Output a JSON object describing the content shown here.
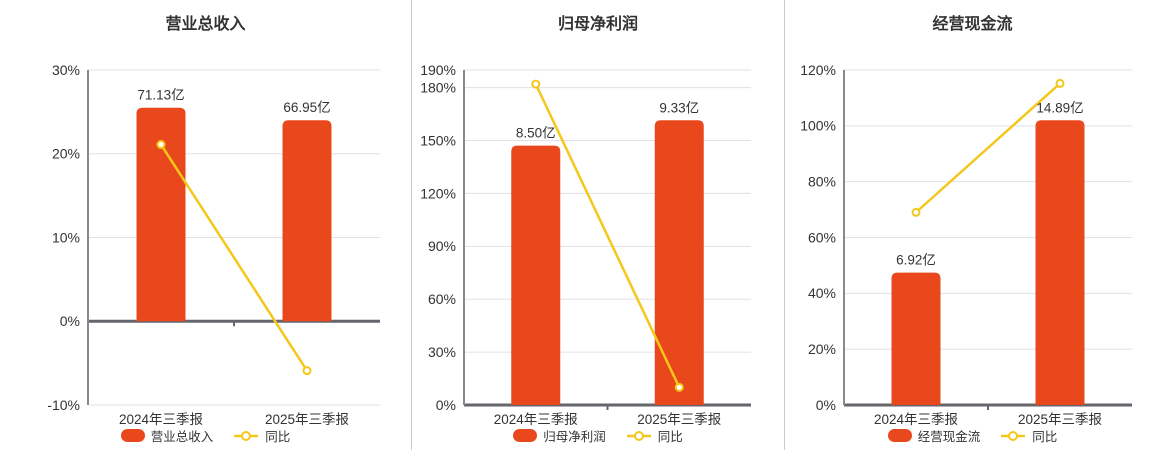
{
  "colors": {
    "bar": "#e8481b",
    "line": "#f4c71a",
    "grid": "#e0e0e8",
    "axis": "#88888f",
    "baseline": "#65656d",
    "divider": "#cccccc",
    "text": "#333333"
  },
  "chart_data": [
    {
      "type": "bar+line",
      "title": "营业总收入",
      "categories": [
        "2024年三季报",
        "2025年三季报"
      ],
      "series": [
        {
          "name": "营业总收入",
          "kind": "bar",
          "unit": "亿",
          "values": [
            71.13,
            66.95
          ],
          "labels": [
            "71.13亿",
            "66.95亿"
          ]
        },
        {
          "name": "同比",
          "kind": "line",
          "unit": "%",
          "values": [
            21.1,
            -5.9
          ]
        }
      ],
      "y_axis": {
        "min": -10,
        "max": 30,
        "ticks": [
          30,
          20,
          10,
          0,
          -10
        ],
        "tick_labels": [
          "30%",
          "20%",
          "10%",
          "0%",
          "-10%"
        ]
      },
      "grid": true,
      "legend_position": "bottom"
    },
    {
      "type": "bar+line",
      "title": "归母净利润",
      "categories": [
        "2024年三季报",
        "2025年三季报"
      ],
      "series": [
        {
          "name": "归母净利润",
          "kind": "bar",
          "unit": "亿",
          "values": [
            8.5,
            9.33
          ],
          "labels": [
            "8.50亿",
            "9.33亿"
          ]
        },
        {
          "name": "同比",
          "kind": "line",
          "unit": "%",
          "values": [
            182,
            10
          ]
        }
      ],
      "y_axis": {
        "min": 0,
        "max": 190,
        "ticks": [
          190,
          180,
          150,
          120,
          90,
          60,
          30,
          0
        ],
        "tick_labels": [
          "190%",
          "180%",
          "150%",
          "120%",
          "90%",
          "60%",
          "30%",
          "0%"
        ]
      },
      "grid": true,
      "legend_position": "bottom"
    },
    {
      "type": "bar+line",
      "title": "经营现金流",
      "categories": [
        "2024年三季报",
        "2025年三季报"
      ],
      "series": [
        {
          "name": "经营现金流",
          "kind": "bar",
          "unit": "亿",
          "values": [
            6.92,
            14.89
          ],
          "labels": [
            "6.92亿",
            "14.89亿"
          ]
        },
        {
          "name": "同比",
          "kind": "line",
          "unit": "%",
          "values": [
            69,
            115.2
          ]
        }
      ],
      "y_axis": {
        "min": 0,
        "max": 120,
        "ticks": [
          120,
          100,
          80,
          60,
          40,
          20,
          0
        ],
        "tick_labels": [
          "120%",
          "100%",
          "80%",
          "60%",
          "40%",
          "20%",
          "0%"
        ]
      },
      "grid": true,
      "legend_position": "bottom"
    }
  ]
}
